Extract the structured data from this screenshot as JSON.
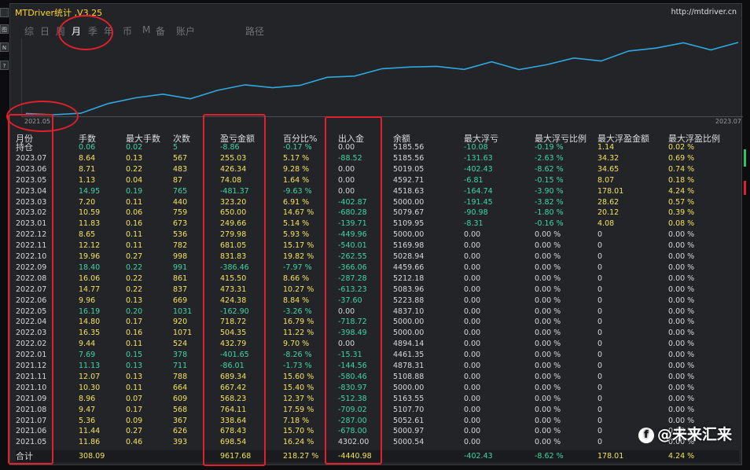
{
  "window": {
    "title": "MTDriver统计 ,V3.25",
    "url": "http://mtdriver.cn"
  },
  "side_buttons": [
    "",
    "图",
    "N",
    "?"
  ],
  "nav_tabs": [
    {
      "label": "综",
      "active": false
    },
    {
      "label": "日",
      "active": false
    },
    {
      "label": "周",
      "active": false
    },
    {
      "label": "月",
      "active": true
    },
    {
      "label": "季",
      "active": false
    },
    {
      "label": "年",
      "active": false
    },
    {
      "label": "币",
      "active": false
    },
    {
      "label": "M",
      "active": false
    },
    {
      "label": "备",
      "active": false
    },
    {
      "label": "账户",
      "active": false
    },
    {
      "label": "路径",
      "active": false
    }
  ],
  "equity_chart": {
    "start_label": "2021.05",
    "end_label": "2023.07",
    "line_color": "#2fa8e0",
    "balance_series": [
      708.54,
      693.89,
      711.05,
      821.27,
      886.26,
      929.05,
      875.98,
      972.69,
      1035.42,
      1001.63,
      1029.37,
      1120.97,
      1134.83,
      1219.14,
      1237.9,
      1246.07,
      1210.48,
      1297.26,
      1209.34,
      1263.91,
      1341.08,
      1306.97,
      1420.39,
      1453.38,
      1513.56,
      1433.41,
      1518.09
    ]
  },
  "table": {
    "headers": [
      "月份",
      "手数",
      "最大手数",
      "次数",
      "盈亏金额",
      "百分比%",
      "出入金",
      "余额",
      "最大浮亏",
      "最大浮亏比例",
      "最大浮盈金额",
      "最大浮盈比例"
    ],
    "rows": [
      [
        "持仓",
        "0.06",
        "0.02",
        "5",
        "-8.86",
        "-0.17 %",
        "0.00",
        "5185.56",
        "-10.08",
        "-0.19 %",
        "1.14",
        "0.02 %"
      ],
      [
        "2023.07",
        "8.64",
        "0.13",
        "567",
        "255.03",
        "5.17 %",
        "-88.52",
        "5185.56",
        "-131.63",
        "-2.63 %",
        "34.32",
        "0.69 %"
      ],
      [
        "2023.06",
        "8.71",
        "0.22",
        "483",
        "426.34",
        "9.28 %",
        "0.00",
        "5019.05",
        "-402.43",
        "-8.62 %",
        "34.65",
        "0.74 %"
      ],
      [
        "2023.05",
        "1.13",
        "0.04",
        "87",
        "74.08",
        "1.64 %",
        "0.00",
        "4592.71",
        "-6.81",
        "-0.15 %",
        "8.07",
        "0.18 %"
      ],
      [
        "2023.04",
        "14.95",
        "0.19",
        "765",
        "-481.37",
        "-9.63 %",
        "0.00",
        "4518.63",
        "-164.74",
        "-3.90 %",
        "178.01",
        "4.24 %"
      ],
      [
        "2023.03",
        "7.20",
        "0.11",
        "440",
        "323.20",
        "6.91 %",
        "-402.87",
        "5000.00",
        "-191.45",
        "-3.82 %",
        "28.62",
        "0.57 %"
      ],
      [
        "2023.02",
        "10.59",
        "0.06",
        "759",
        "650.00",
        "14.67 %",
        "-680.28",
        "5079.67",
        "-90.98",
        "-1.80 %",
        "20.12",
        "0.39 %"
      ],
      [
        "2023.01",
        "11.83",
        "0.16",
        "673",
        "249.66",
        "5.14 %",
        "-139.71",
        "5109.95",
        "-8.31",
        "-0.16 %",
        "4.08",
        "0.08 %"
      ],
      [
        "2022.12",
        "8.65",
        "0.11",
        "536",
        "279.98",
        "5.93 %",
        "-449.96",
        "5000.00",
        "0.00",
        "0.00 %",
        "0",
        "0.00 %"
      ],
      [
        "2022.11",
        "12.12",
        "0.11",
        "782",
        "681.05",
        "15.17 %",
        "-540.01",
        "5169.98",
        "0.00",
        "0.00 %",
        "0",
        "0.00 %"
      ],
      [
        "2022.10",
        "19.96",
        "0.27",
        "998",
        "831.83",
        "19.82 %",
        "-262.55",
        "5028.94",
        "0.00",
        "0.00 %",
        "0",
        "0.00 %"
      ],
      [
        "2022.09",
        "18.40",
        "0.22",
        "991",
        "-386.46",
        "-7.97 %",
        "-366.06",
        "4459.66",
        "0.00",
        "0.00 %",
        "0",
        "0.00 %"
      ],
      [
        "2022.08",
        "16.06",
        "0.22",
        "861",
        "415.50",
        "8.66 %",
        "-287.28",
        "5212.18",
        "0.00",
        "0.00 %",
        "0",
        "0.00 %"
      ],
      [
        "2022.07",
        "14.77",
        "0.22",
        "837",
        "473.31",
        "10.27 %",
        "-613.23",
        "5083.96",
        "0.00",
        "0.00 %",
        "0",
        "0.00 %"
      ],
      [
        "2022.06",
        "9.96",
        "0.13",
        "669",
        "424.38",
        "8.84 %",
        "-37.60",
        "5223.88",
        "0.00",
        "0.00 %",
        "0",
        "0.00 %"
      ],
      [
        "2022.05",
        "16.19",
        "0.20",
        "1031",
        "-162.90",
        "-3.26 %",
        "0.00",
        "4837.10",
        "0.00",
        "0.00 %",
        "0",
        "0.00 %"
      ],
      [
        "2022.04",
        "14.80",
        "0.17",
        "920",
        "718.72",
        "16.79 %",
        "-718.72",
        "5000.00",
        "0.00",
        "0.00 %",
        "0",
        "0.00 %"
      ],
      [
        "2022.03",
        "16.35",
        "0.16",
        "1071",
        "504.35",
        "11.22 %",
        "-398.49",
        "5000.00",
        "0.00",
        "0.00 %",
        "0",
        "0.00 %"
      ],
      [
        "2022.02",
        "9.44",
        "0.11",
        "524",
        "432.79",
        "9.70 %",
        "0.00",
        "4894.14",
        "0.00",
        "0.00 %",
        "0",
        "0.00 %"
      ],
      [
        "2022.01",
        "7.69",
        "0.15",
        "378",
        "-401.65",
        "-8.26 %",
        "-15.31",
        "4461.35",
        "0.00",
        "0.00 %",
        "0",
        "0.00 %"
      ],
      [
        "2021.12",
        "11.13",
        "0.13",
        "711",
        "-86.01",
        "-1.73 %",
        "-144.56",
        "4878.31",
        "0.00",
        "0.00 %",
        "0",
        "0.00 %"
      ],
      [
        "2021.11",
        "12.07",
        "0.13",
        "788",
        "689.34",
        "15.60 %",
        "-580.46",
        "5108.88",
        "0.00",
        "0.00 %",
        "0",
        "0.00 %"
      ],
      [
        "2021.10",
        "10.30",
        "0.11",
        "664",
        "667.42",
        "15.40 %",
        "-830.97",
        "5000.00",
        "0.00",
        "0.00 %",
        "0",
        "0.00 %"
      ],
      [
        "2021.09",
        "8.96",
        "0.07",
        "609",
        "568.23",
        "12.37 %",
        "-512.38",
        "5163.55",
        "0.00",
        "0.00 %",
        "0",
        "0.00 %"
      ],
      [
        "2021.08",
        "9.47",
        "0.17",
        "568",
        "764.11",
        "17.59 %",
        "-709.02",
        "5107.70",
        "0.00",
        "0.00 %",
        "0",
        "0.00 %"
      ],
      [
        "2021.07",
        "5.36",
        "0.09",
        "367",
        "338.64",
        "7.18 %",
        "-287.00",
        "5052.61",
        "0.00",
        "0.00 %",
        "0",
        "0.00 %"
      ],
      [
        "2021.06",
        "11.44",
        "0.27",
        "626",
        "678.43",
        "15.70 %",
        "-678.00",
        "5000.97",
        "0.00",
        "0.00 %",
        "0",
        "0.00 %"
      ],
      [
        "2021.05",
        "11.86",
        "0.46",
        "393",
        "698.54",
        "16.24 %",
        "4302.00",
        "5000.54",
        "0.00",
        "0.00 %",
        "0",
        "0.00 %"
      ]
    ],
    "total": [
      "合计",
      "308.09",
      "",
      "",
      "9617.68",
      "218.27 %",
      "-4440.98",
      "",
      "-402.43",
      "-8.62 %",
      "178.01",
      "4.24 %"
    ]
  },
  "colors": {
    "panel_bg": "#222428",
    "title": "#ffd62b",
    "positive": "#f2e35c",
    "negative": "#3fd6a0",
    "neutral": "#d8d8d8",
    "annotation": "#e0202a"
  },
  "watermark": {
    "icon": "f",
    "text": "@未来汇来"
  }
}
